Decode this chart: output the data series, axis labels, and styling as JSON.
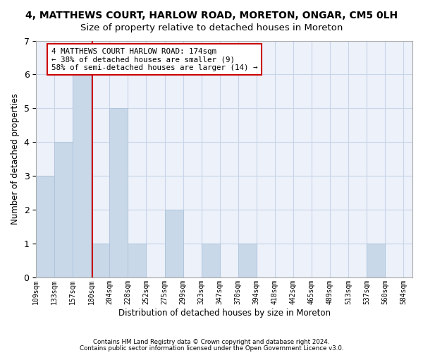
{
  "title1": "4, MATTHEWS COURT, HARLOW ROAD, MORETON, ONGAR, CM5 0LH",
  "title2": "Size of property relative to detached houses in Moreton",
  "xlabel": "Distribution of detached houses by size in Moreton",
  "ylabel": "Number of detached properties",
  "footer1": "Contains HM Land Registry data © Crown copyright and database right 2024.",
  "footer2": "Contains public sector information licensed under the Open Government Licence v3.0.",
  "bar_labels": [
    "109sqm",
    "133sqm",
    "157sqm",
    "180sqm",
    "204sqm",
    "228sqm",
    "252sqm",
    "275sqm",
    "299sqm",
    "323sqm",
    "347sqm",
    "370sqm",
    "394sqm",
    "418sqm",
    "442sqm",
    "465sqm",
    "489sqm",
    "513sqm",
    "537sqm",
    "560sqm"
  ],
  "heights": [
    3,
    4,
    6,
    1,
    5,
    1,
    0,
    2,
    0,
    1,
    0,
    1,
    0,
    0,
    0,
    0,
    0,
    0,
    1,
    0
  ],
  "last_tick_label": "584sqm",
  "bar_color": "#c8d8e8",
  "bar_edge_color": "#a8c0d8",
  "vline_x": 2.58,
  "vline_color": "#cc0000",
  "ylim": [
    0,
    7
  ],
  "yticks": [
    0,
    1,
    2,
    3,
    4,
    5,
    6,
    7
  ],
  "annotation_text": "4 MATTHEWS COURT HARLOW ROAD: 174sqm\n← 38% of detached houses are smaller (9)\n58% of semi-detached houses are larger (14) →",
  "annotation_box_color": "#ffffff",
  "annotation_box_edge": "#cc0000",
  "title1_fontsize": 10,
  "title2_fontsize": 9.5,
  "grid_color": "#c8d4e8",
  "background_color": "#edf1fa"
}
